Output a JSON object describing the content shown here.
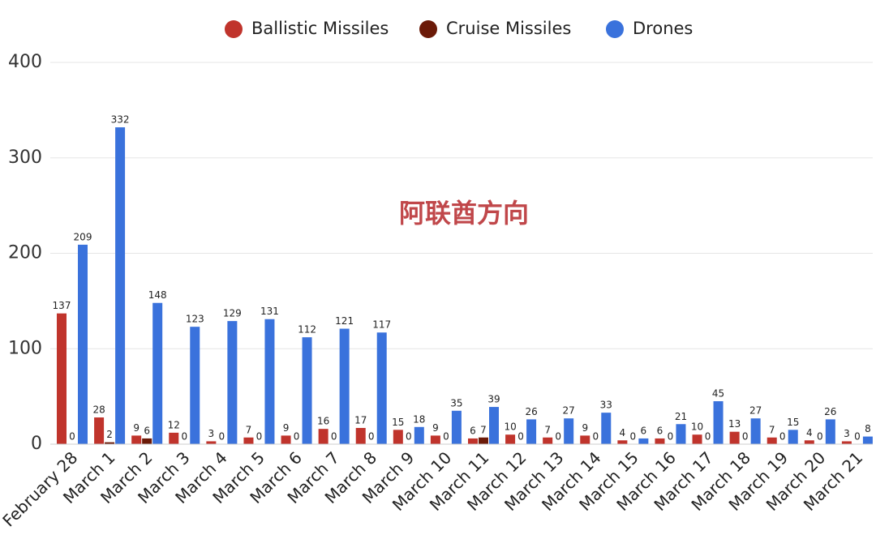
{
  "chart_data": {
    "type": "bar",
    "annotation": "阿联酋方向",
    "categories": [
      "February 28",
      "March 1",
      "March 2",
      "March 3",
      "March 4",
      "March 5",
      "March 6",
      "March 7",
      "March 8",
      "March 9",
      "March 10",
      "March 11",
      "March 12",
      "March 13",
      "March 14",
      "March 15",
      "March 16",
      "March 17",
      "March 18",
      "March 19",
      "March 20",
      "March 21"
    ],
    "series": [
      {
        "name": "Ballistic Missiles",
        "color": "#c0342c",
        "values": [
          137,
          28,
          9,
          12,
          3,
          7,
          9,
          16,
          17,
          15,
          9,
          6,
          10,
          7,
          9,
          4,
          6,
          10,
          13,
          7,
          4,
          3
        ]
      },
      {
        "name": "Cruise Missiles",
        "color": "#6b1a08",
        "values": [
          0,
          2,
          6,
          0,
          0,
          0,
          0,
          0,
          0,
          0,
          0,
          7,
          0,
          0,
          0,
          0,
          0,
          0,
          0,
          0,
          0,
          0
        ]
      },
      {
        "name": "Drones",
        "color": "#3a72dc",
        "values": [
          209,
          332,
          148,
          123,
          129,
          131,
          112,
          121,
          117,
          18,
          35,
          39,
          26,
          27,
          33,
          6,
          21,
          45,
          27,
          15,
          26,
          8
        ]
      }
    ],
    "ylim": [
      0,
      400
    ],
    "yticks": [
      0,
      100,
      200,
      300,
      400
    ],
    "grid": true,
    "legend": "top"
  }
}
